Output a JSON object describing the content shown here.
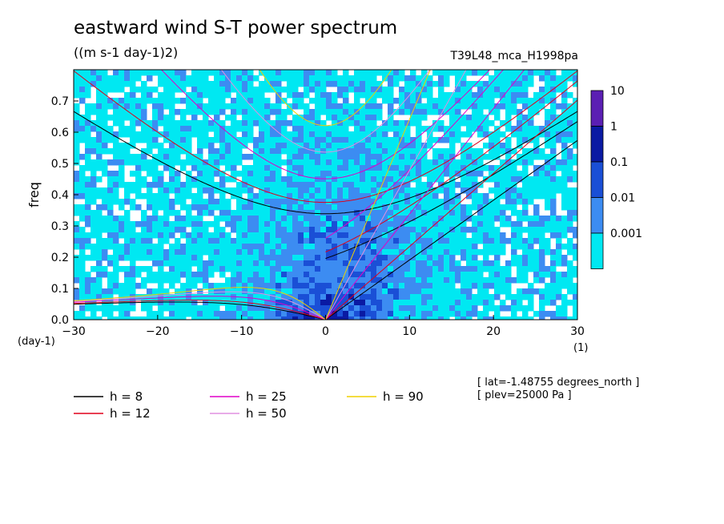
{
  "title": "eastward wind S-T power spectrum",
  "units": "((m s-1 day-1)2)",
  "dataset": "T39L48_mca_H1998pa",
  "info": [
    "[ lat=-1.48755 degrees_north ]",
    "[ plev=25000 Pa ]"
  ],
  "chart_data": {
    "type": "heatmap",
    "xlabel": "wvn",
    "ylabel": "freq",
    "x_unit": "(1)",
    "y_unit": "(day-1)",
    "xlim": [
      -30,
      30
    ],
    "ylim": [
      0,
      0.8
    ],
    "xticks": [
      -30,
      -20,
      -10,
      0,
      10,
      20,
      30
    ],
    "yticks": [
      0.0,
      0.1,
      0.2,
      0.3,
      0.4,
      0.5,
      0.6,
      0.7
    ],
    "ytick_labels": [
      "0.0",
      "0.1",
      "0.2",
      "0.3",
      "0.4",
      "0.5",
      "0.6",
      "0.7"
    ],
    "colorbar": {
      "labels": [
        "10",
        "1",
        "0.1",
        "0.01",
        "0.001"
      ],
      "colors": [
        "#5b1fb3",
        "#0a1aa3",
        "#1a4fd6",
        "#3c8cf2",
        "#00e8f2"
      ]
    },
    "dispersion_curves": [
      {
        "name": "h =  8",
        "h": 8,
        "color": "#000000"
      },
      {
        "name": "h = 12",
        "h": 12,
        "color": "#e0001a"
      },
      {
        "name": "h = 25",
        "h": 25,
        "color": "#e000c8"
      },
      {
        "name": "h = 50",
        "h": 50,
        "color": "#e090e0"
      },
      {
        "name": "h = 90",
        "h": 90,
        "color": "#f0d000"
      }
    ]
  }
}
